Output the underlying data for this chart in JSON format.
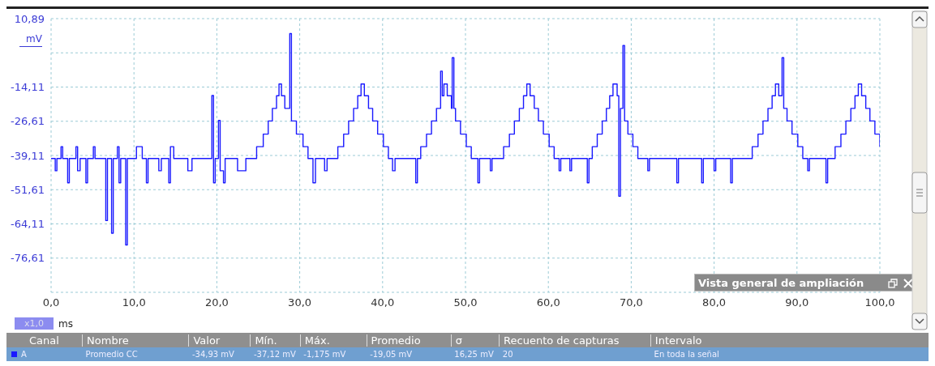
{
  "chart_data": {
    "type": "step",
    "xlabel": "ms",
    "ylabel": "mV",
    "annotations": [
      "x1,0",
      "Vista general de ampliación",
      "Canal",
      "Nombre",
      "Valor",
      "Mín.",
      "Máx.",
      "Promedio",
      "σ",
      "Recuento de capturas",
      "Intervalo",
      "A",
      "Promedio CC",
      "-34,93 mV",
      "-37,12 mV",
      "-1,175 mV",
      "-19,05 mV",
      "16,25 mV",
      "20",
      "En toda la señal"
    ],
    "series": [
      {
        "color": "#1a1aff",
        "x": [
          0,
          0.5,
          0.7,
          1.2,
          1.4,
          2.0,
          2.2,
          3.0,
          3.2,
          3.5,
          4.2,
          4.4,
          5.1,
          5.3,
          6.6,
          6.8,
          7.3,
          7.5,
          8.0,
          8.2,
          8.4,
          9.0,
          9.2,
          10.3,
          11.0,
          11.5,
          11.7,
          13.0,
          13.3,
          14.2,
          14.4,
          14.8,
          16.5,
          17.0,
          19.4,
          19.6,
          19.8,
          20.2,
          20.4,
          20.8,
          21.0,
          22.5,
          23.5,
          24.8,
          25.6,
          26.2,
          26.7,
          27.2,
          27.5,
          27.8,
          28.2,
          28.8,
          29.0,
          29.6,
          30.4,
          31.0,
          31.6,
          31.9,
          33.0,
          33.3,
          34.6,
          35.3,
          35.9,
          36.5,
          37.0,
          37.4,
          37.8,
          38.3,
          38.8,
          39.4,
          40.1,
          40.7,
          41.2,
          41.5,
          44.0,
          44.2,
          44.6,
          45.3,
          45.9,
          46.5,
          47.0,
          47.2,
          47.4,
          47.8,
          48.3,
          48.4,
          48.6,
          48.8,
          49.4,
          50.1,
          50.7,
          51.5,
          51.7,
          53.0,
          53.2,
          54.6,
          55.3,
          55.9,
          56.5,
          57.0,
          57.4,
          57.8,
          58.3,
          58.8,
          59.4,
          60.1,
          60.7,
          61.3,
          61.5,
          62.6,
          62.8,
          64.7,
          64.9,
          65.3,
          65.9,
          66.5,
          67.0,
          67.4,
          67.8,
          68.3,
          68.5,
          68.7,
          69.0,
          69.2,
          69.6,
          70.2,
          70.8,
          72.0,
          72.2,
          75.5,
          75.7,
          78.5,
          78.7,
          80.0,
          80.2,
          82.0,
          82.2,
          84.6,
          85.3,
          85.9,
          86.5,
          87.0,
          87.4,
          87.8,
          88.2,
          88.4,
          88.8,
          89.4,
          90.1,
          90.7,
          91.3,
          91.5,
          93.5,
          93.7,
          94.6,
          95.3,
          95.9,
          96.5,
          97.0,
          97.4,
          97.8,
          98.3,
          98.8,
          99.4,
          100
        ],
        "values": [
          -40.2,
          -44.7,
          -40.2,
          -35.9,
          -40.2,
          -49.1,
          -40.2,
          -35.9,
          -44.7,
          -40.2,
          -49.1,
          -40.2,
          -35.9,
          -40.2,
          -62.9,
          -40.2,
          -67.5,
          -40.2,
          -35.9,
          -49.1,
          -40.2,
          -71.8,
          -40.2,
          -35.9,
          -40.2,
          -49.1,
          -40.2,
          -44.7,
          -40.2,
          -49.1,
          -35.9,
          -40.2,
          -44.7,
          -40.2,
          -17.2,
          -49.1,
          -40.2,
          -26.3,
          -44.7,
          -49.1,
          -40.2,
          -44.7,
          -40.2,
          -35.9,
          -31.3,
          -26.5,
          -21.9,
          -17.3,
          -13.0,
          -17.3,
          -21.9,
          5.4,
          -26.5,
          -31.3,
          -35.9,
          -40.2,
          -49.1,
          -40.2,
          -44.7,
          -40.2,
          -35.9,
          -31.3,
          -26.5,
          -21.9,
          -17.3,
          -13.0,
          -17.3,
          -21.9,
          -26.5,
          -31.3,
          -35.9,
          -40.2,
          -44.7,
          -40.2,
          -49.1,
          -40.2,
          -35.9,
          -31.3,
          -26.5,
          -21.9,
          -8.3,
          -17.3,
          -13.0,
          -17.3,
          -21.9,
          -3.4,
          -21.9,
          -26.5,
          -31.3,
          -35.9,
          -40.2,
          -49.1,
          -40.2,
          -44.7,
          -40.2,
          -35.9,
          -31.3,
          -26.5,
          -21.9,
          -17.3,
          -13.0,
          -17.3,
          -21.9,
          -26.5,
          -31.3,
          -35.9,
          -40.2,
          -44.7,
          -40.2,
          -44.7,
          -40.2,
          -49.1,
          -40.2,
          -35.9,
          -31.3,
          -26.5,
          -21.9,
          -17.3,
          -13.0,
          -17.3,
          -54.0,
          -21.9,
          1.1,
          -26.5,
          -31.3,
          -35.9,
          -40.2,
          -44.7,
          -40.2,
          -49.1,
          -40.2,
          -49.1,
          -40.2,
          -44.7,
          -40.2,
          -49.1,
          -40.2,
          -35.9,
          -31.3,
          -26.5,
          -21.9,
          -17.3,
          -13.0,
          -17.3,
          -3.4,
          -21.9,
          -26.5,
          -31.3,
          -35.9,
          -40.2,
          -44.7,
          -40.2,
          -49.1,
          -40.2,
          -35.9,
          -31.3,
          -26.5,
          -21.9,
          -17.3,
          -13.0,
          -17.3,
          -21.9,
          -26.5,
          -31.3,
          -35.9
        ]
      }
    ],
    "xlim": [
      0,
      100
    ],
    "xticks": [
      {
        "value": 0,
        "label": "0,0"
      },
      {
        "value": 10,
        "label": "10,0"
      },
      {
        "value": 20,
        "label": "20,0"
      },
      {
        "value": 30,
        "label": "30,0"
      },
      {
        "value": 40,
        "label": "40,0"
      },
      {
        "value": 50,
        "label": "50,0"
      },
      {
        "value": 60,
        "label": "60,0"
      },
      {
        "value": 70,
        "label": "70,0"
      },
      {
        "value": 80,
        "label": "80,0"
      },
      {
        "value": 90,
        "label": "90,0"
      },
      {
        "value": 100,
        "label": "100,0"
      }
    ],
    "ylim": [
      -89.11,
      10.89
    ],
    "yticks": [
      {
        "value": 10.89,
        "label": "10,89"
      },
      {
        "value": -1.61,
        "label": null
      },
      {
        "value": -14.11,
        "label": "-14,11"
      },
      {
        "value": -26.61,
        "label": "-26,61"
      },
      {
        "value": -39.11,
        "label": "-39,11"
      },
      {
        "value": -51.61,
        "label": "-51,61"
      },
      {
        "value": -64.11,
        "label": "-64,11"
      },
      {
        "value": -76.61,
        "label": "-76,61"
      },
      {
        "value": -89.11,
        "label": null
      }
    ],
    "grid": true
  }
}
